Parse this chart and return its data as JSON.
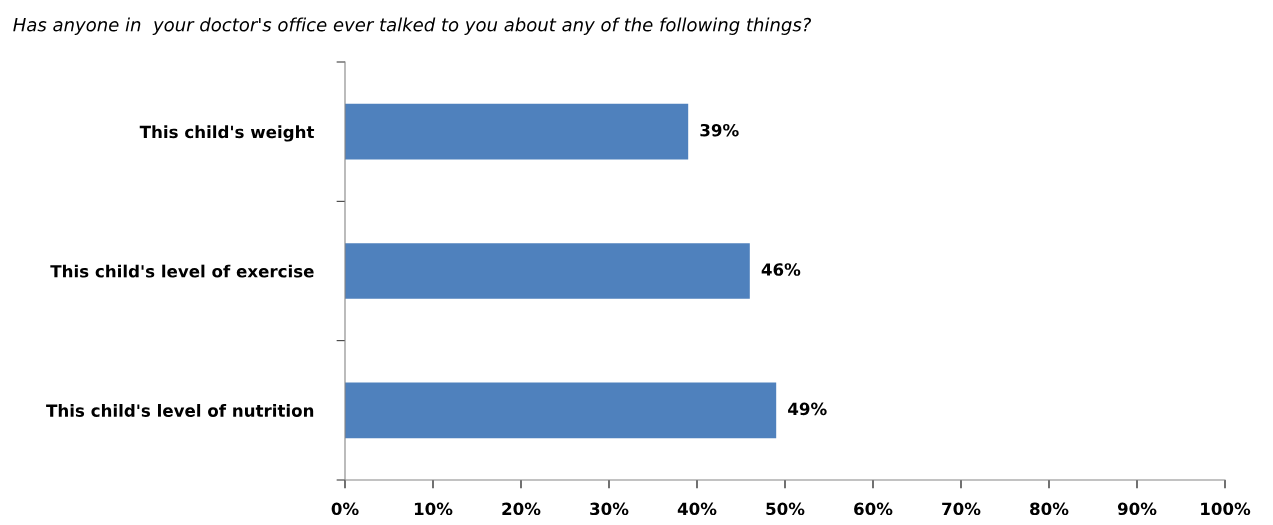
{
  "chart_data": {
    "type": "bar",
    "orientation": "horizontal",
    "title": "Has anyone in  your doctor's office ever talked to you about any of the following things?",
    "categories": [
      "This child's weight",
      "This child's level of exercise",
      "This child's level of nutrition"
    ],
    "values": [
      39,
      46,
      49
    ],
    "value_labels": [
      "39%",
      "46%",
      "49%"
    ],
    "color": "#4f81bd",
    "xlim": [
      0,
      100
    ],
    "xticks": [
      {
        "value": 0,
        "label": "0%"
      },
      {
        "value": 10,
        "label": "10%"
      },
      {
        "value": 20,
        "label": "20%"
      },
      {
        "value": 30,
        "label": "30%"
      },
      {
        "value": 40,
        "label": "40%"
      },
      {
        "value": 50,
        "label": "50%"
      },
      {
        "value": 60,
        "label": "60%"
      },
      {
        "value": 70,
        "label": "70%"
      },
      {
        "value": 80,
        "label": "80%"
      },
      {
        "value": 90,
        "label": "90%"
      },
      {
        "value": 100,
        "label": "100%"
      }
    ],
    "grid": false,
    "legend": false
  }
}
